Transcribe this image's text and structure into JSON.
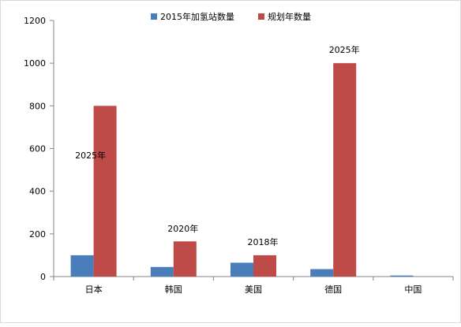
{
  "colors": {
    "series1": "#4a7ebb",
    "series2": "#be4b48",
    "axis": "#868686",
    "text": "#000000"
  },
  "chart_data": {
    "type": "bar",
    "title": "",
    "xlabel": "",
    "ylabel": "",
    "ylim": [
      0,
      1200
    ],
    "yticks": [
      "0",
      "200",
      "400",
      "600",
      "800",
      "1000",
      "1200"
    ],
    "legend_position": "top",
    "grid": false,
    "categories": [
      "日本",
      "韩国",
      "美国",
      "德国",
      "中国"
    ],
    "series": [
      {
        "name": "2015年加氢站数量",
        "values": [
          100,
          45,
          65,
          35,
          5
        ]
      },
      {
        "name": "规划年数量",
        "values": [
          800,
          165,
          100,
          1000,
          0
        ]
      }
    ],
    "annotations": [
      {
        "category": "日本",
        "text": "2025年"
      },
      {
        "category": "韩国",
        "text": "2020年"
      },
      {
        "category": "美国",
        "text": "2018年"
      },
      {
        "category": "德国",
        "text": "2025年"
      }
    ]
  }
}
